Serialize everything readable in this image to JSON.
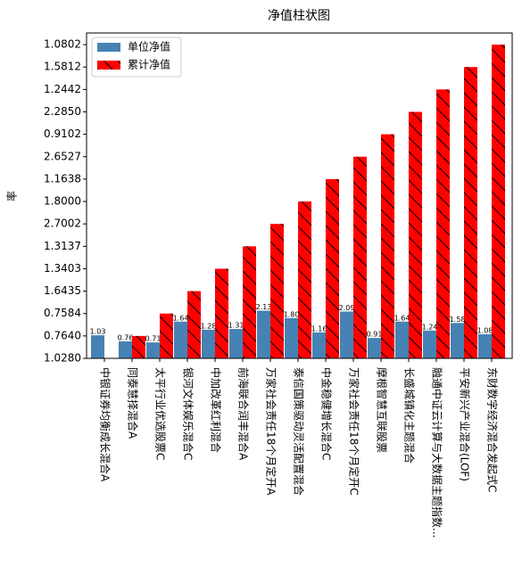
{
  "chart_data": {
    "type": "bar",
    "title": "净值柱状图",
    "ylabel": "率",
    "categories": [
      "中银证券均衡成长混合A",
      "同泰慧择混合A",
      "太平行业优选股票C",
      "银河文体娱乐混合C",
      "中加改革红利混合",
      "前海联合润丰混合A",
      "万家社会责任18个月定开A",
      "泰信国策驱动灵活配置混合",
      "中金稳健增长混合C",
      "万家社会责任18个月定开C",
      "摩根智慧互联股票",
      "长盛城镇化主题混合",
      "融通中证云计算与大数据主题指数...",
      "平安新兴产业混合(LOF)",
      "东财数字经济混合发起式C"
    ],
    "series": [
      {
        "name": "单位净值",
        "color": "#4682b4",
        "values": [
          1.03,
          0.76,
          0.71,
          1.64,
          1.28,
          1.31,
          2.13,
          1.8,
          1.16,
          2.09,
          0.91,
          1.64,
          1.24,
          1.58,
          1.08
        ],
        "value_labels": [
          "1.03",
          "0.76",
          "0.71",
          "1.64",
          "1.28",
          "1.31",
          "2.13",
          "1.80",
          "1.16",
          "2.09",
          "0.91",
          "1.64",
          "1.24",
          "1.58",
          "1.08"
        ]
      },
      {
        "name": "累计净值",
        "color": "#ff0000",
        "hatch": "\\",
        "values": [
          0,
          1,
          2,
          3,
          4,
          5,
          6,
          7,
          8,
          9,
          10,
          11,
          12,
          13,
          14
        ]
      }
    ],
    "ylim": [
      0,
      14.52
    ],
    "yticks": [
      {
        "value": 0,
        "label": "1.0280"
      },
      {
        "value": 1,
        "label": "0.7640"
      },
      {
        "value": 2,
        "label": "0.7584"
      },
      {
        "value": 3,
        "label": "1.6435"
      },
      {
        "value": 4,
        "label": "1.3403"
      },
      {
        "value": 5,
        "label": "1.3137"
      },
      {
        "value": 6,
        "label": "2.7002"
      },
      {
        "value": 7,
        "label": "1.8000"
      },
      {
        "value": 8,
        "label": "1.1638"
      },
      {
        "value": 9,
        "label": "2.6527"
      },
      {
        "value": 10,
        "label": "0.9102"
      },
      {
        "value": 11,
        "label": "2.2850"
      },
      {
        "value": 12,
        "label": "1.2442"
      },
      {
        "value": 13,
        "label": "1.5812"
      },
      {
        "value": 14,
        "label": "1.0802"
      }
    ],
    "legend": "upper left"
  }
}
